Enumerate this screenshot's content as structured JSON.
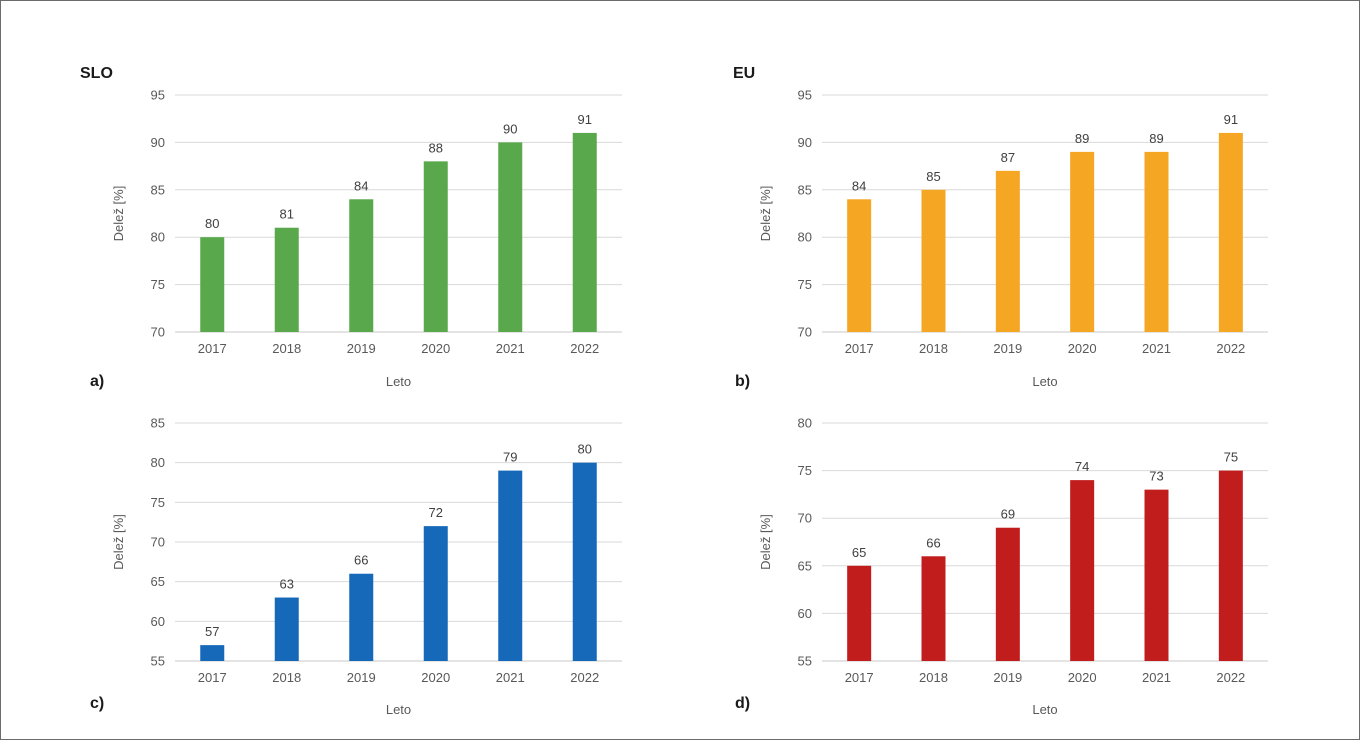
{
  "chart_data": [
    {
      "type": "bar",
      "region_label": "SLO",
      "panel_label": "a)",
      "categories": [
        "2017",
        "2018",
        "2019",
        "2020",
        "2021",
        "2022"
      ],
      "values": [
        80,
        81,
        84,
        88,
        90,
        91
      ],
      "xlabel": "Leto",
      "ylabel": "Delež [%]",
      "ylim": [
        70,
        95
      ],
      "yticks": [
        70,
        75,
        80,
        85,
        90,
        95
      ],
      "color": "#59a84b",
      "grid": true
    },
    {
      "type": "bar",
      "region_label": "EU",
      "panel_label": "b)",
      "categories": [
        "2017",
        "2018",
        "2019",
        "2020",
        "2021",
        "2022"
      ],
      "values": [
        84,
        85,
        87,
        89,
        89,
        91
      ],
      "xlabel": "Leto",
      "ylabel": "Delež [%]",
      "ylim": [
        70,
        95
      ],
      "yticks": [
        70,
        75,
        80,
        85,
        90,
        95
      ],
      "color": "#f5a623",
      "grid": true
    },
    {
      "type": "bar",
      "region_label": "",
      "panel_label": "c)",
      "categories": [
        "2017",
        "2018",
        "2019",
        "2020",
        "2021",
        "2022"
      ],
      "values": [
        57,
        63,
        66,
        72,
        79,
        80
      ],
      "xlabel": "Leto",
      "ylabel": "Delež [%]",
      "ylim": [
        55,
        85
      ],
      "yticks": [
        55,
        60,
        65,
        70,
        75,
        80,
        85
      ],
      "color": "#1569b8",
      "grid": true
    },
    {
      "type": "bar",
      "region_label": "",
      "panel_label": "d)",
      "categories": [
        "2017",
        "2018",
        "2019",
        "2020",
        "2021",
        "2022"
      ],
      "values": [
        65,
        66,
        69,
        74,
        73,
        75
      ],
      "xlabel": "Leto",
      "ylabel": "Delež [%]",
      "ylim": [
        55,
        80
      ],
      "yticks": [
        55,
        60,
        65,
        70,
        75,
        80
      ],
      "color": "#c21d1d",
      "grid": true
    }
  ]
}
